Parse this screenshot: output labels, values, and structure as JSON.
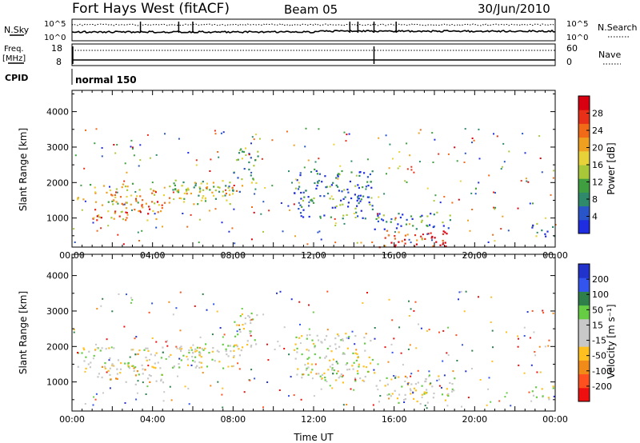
{
  "header": {
    "station": "Fort Hays West (fitACF)",
    "beam": "Beam 05",
    "date": "30/Jun/2010"
  },
  "panels": {
    "nsky": {
      "left_label": "N.Sky",
      "right_label": "N.Search",
      "ticks_left": [
        "10^5",
        "10^0"
      ],
      "ticks_right": [
        "10^5",
        "10^0"
      ]
    },
    "freq": {
      "left_label_1": "Freq.",
      "left_label_2": "[MHz]",
      "right_label": "Nave",
      "ticks_left": [
        "18",
        "8"
      ],
      "ticks_right": [
        "60",
        "0"
      ]
    },
    "cpid": {
      "label": "CPID",
      "value": "normal 150"
    }
  },
  "colors": {
    "power_scale": [
      "#1f2de0",
      "#2a55c8",
      "#2e8a6a",
      "#3f9f40",
      "#a8c83a",
      "#e8d23a",
      "#f0a020",
      "#f06a18",
      "#e83018",
      "#d80010"
    ],
    "velocity_scale": [
      "#2233cc",
      "#3355ee",
      "#2e7f4a",
      "#66cc44",
      "#c8c8c8",
      "#c8c8c8",
      "#ffc020",
      "#f08a18",
      "#ff5020",
      "#ee1010"
    ]
  },
  "chart_data": [
    {
      "type": "heatmap",
      "name": "power",
      "ylabel": "Slant Range [km]",
      "xlabel": "",
      "x_ticks": [
        "00:00",
        "04:00",
        "08:00",
        "12:00",
        "16:00",
        "20:00",
        "00:00"
      ],
      "y_ticks": [
        1000,
        2000,
        3000,
        4000
      ],
      "ylim": [
        180,
        4600
      ],
      "xlim_hours": [
        0,
        24
      ],
      "colorbar": {
        "label": "Power [dB]",
        "ticks": [
          "4",
          "8",
          "12",
          "16",
          "20",
          "24",
          "28"
        ],
        "range": [
          0,
          30
        ]
      },
      "scatter_regions": [
        {
          "t0": 0.2,
          "t1": 8.0,
          "r0": 1400,
          "r1": 2000,
          "level": 0.55
        },
        {
          "t0": 1.0,
          "t1": 4.5,
          "r0": 950,
          "r1": 1500,
          "level": 0.7
        },
        {
          "t0": 5.0,
          "t1": 8.5,
          "r0": 1700,
          "r1": 2100,
          "level": 0.45
        },
        {
          "t0": 8.0,
          "t1": 9.2,
          "r0": 2000,
          "r1": 3000,
          "level": 0.3
        },
        {
          "t0": 15.2,
          "t1": 18.8,
          "r0": 200,
          "r1": 700,
          "level": 0.9
        },
        {
          "t0": 15.0,
          "t1": 19.0,
          "r0": 700,
          "r1": 1200,
          "level": 0.2
        },
        {
          "t0": 11.0,
          "t1": 15.0,
          "r0": 1000,
          "r1": 2400,
          "level": 0.15
        },
        {
          "t0": 22.8,
          "t1": 24.0,
          "r0": 500,
          "r1": 900,
          "level": 0.25
        }
      ]
    },
    {
      "type": "heatmap",
      "name": "velocity",
      "ylabel": "Slant Range [km]",
      "xlabel": "Time UT",
      "x_ticks": [
        "00:00",
        "04:00",
        "08:00",
        "12:00",
        "16:00",
        "20:00",
        "00:00"
      ],
      "y_ticks": [
        1000,
        2000,
        3000,
        4000
      ],
      "ylim": [
        180,
        4600
      ],
      "xlim_hours": [
        0,
        24
      ],
      "colorbar": {
        "label": "Velocity [m s⁻¹]",
        "ticks": [
          "200",
          "100",
          "50",
          "15",
          "-15",
          "-50",
          "-100",
          "-200"
        ],
        "range": [
          -250,
          250
        ]
      },
      "scatter_regions": [
        {
          "t0": 0.2,
          "t1": 8.0,
          "r0": 1400,
          "r1": 2000,
          "level": 0.0
        },
        {
          "t0": 1.0,
          "t1": 4.5,
          "r0": 950,
          "r1": 1500,
          "level": -0.2
        },
        {
          "t0": 5.0,
          "t1": 8.5,
          "r0": 1700,
          "r1": 2100,
          "level": 0.0
        },
        {
          "t0": 8.0,
          "t1": 9.2,
          "r0": 2000,
          "r1": 3000,
          "level": 0.0
        },
        {
          "t0": 15.2,
          "t1": 18.8,
          "r0": 400,
          "r1": 700,
          "level": 0.0
        },
        {
          "t0": 15.0,
          "t1": 19.0,
          "r0": 700,
          "r1": 1200,
          "level": 0.0
        },
        {
          "t0": 11.0,
          "t1": 15.0,
          "r0": 1000,
          "r1": 2400,
          "level": 0.0
        },
        {
          "t0": 22.8,
          "t1": 24.0,
          "r0": 500,
          "r1": 900,
          "level": 0.0
        }
      ]
    }
  ]
}
